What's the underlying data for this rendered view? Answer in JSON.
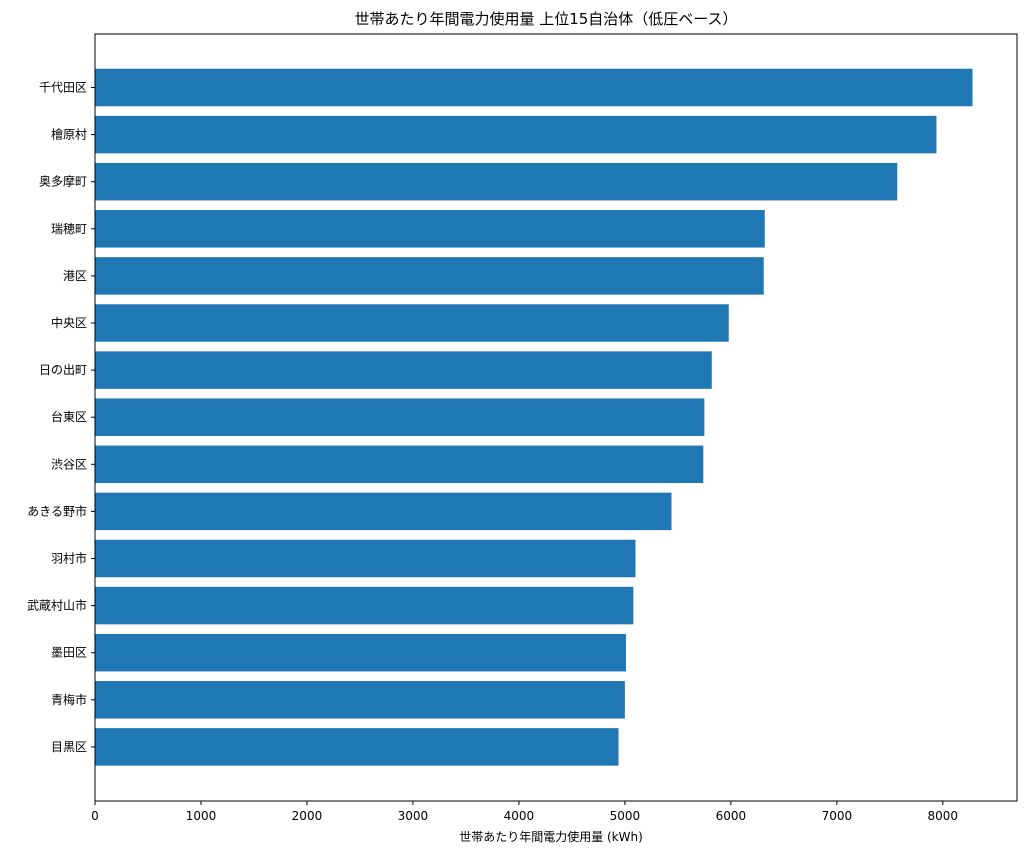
{
  "chart_data": {
    "type": "bar",
    "orientation": "horizontal",
    "title": "世帯あたり年間電力使用量 上位15自治体（低圧ベース）",
    "xlabel": "世帯あたり年間電力使用量 (kWh)",
    "ylabel": "",
    "xlim": [
      0,
      8700
    ],
    "xticks": [
      0,
      1000,
      2000,
      3000,
      4000,
      5000,
      6000,
      7000,
      8000
    ],
    "grid": false,
    "legend": "none",
    "bar_color": "#1f77b4",
    "categories": [
      "千代田区",
      "檜原村",
      "奥多摩町",
      "瑞穂町",
      "港区",
      "中央区",
      "日の出町",
      "台東区",
      "渋谷区",
      "あきる野市",
      "羽村市",
      "武蔵村山市",
      "墨田区",
      "青梅市",
      "目黒区"
    ],
    "values": [
      8280,
      7940,
      7570,
      6320,
      6310,
      5980,
      5820,
      5750,
      5740,
      5440,
      5100,
      5080,
      5010,
      5000,
      4940
    ]
  }
}
